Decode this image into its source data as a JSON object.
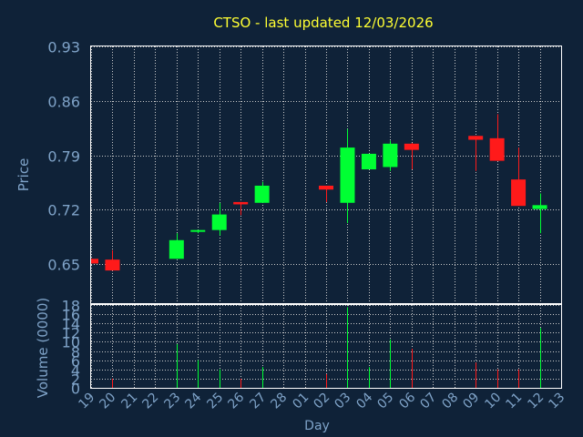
{
  "chart_data": {
    "type": "candlestick",
    "title": "CTSO - last updated 12/03/2026",
    "price_label": "Price",
    "volume_label": "Volume (0000)",
    "xlabel": "Day",
    "price_ylim": [
      0.6,
      0.93
    ],
    "price_ticks": [
      "0.65",
      "0.72",
      "0.79",
      "0.86",
      "0.93"
    ],
    "volume_ylim": [
      0,
      18
    ],
    "volume_ticks": [
      "0",
      "2",
      "4",
      "6",
      "8",
      "10",
      "12",
      "14",
      "16",
      "18"
    ],
    "days": [
      "19",
      "20",
      "21",
      "22",
      "23",
      "24",
      "25",
      "26",
      "27",
      "28",
      "01",
      "02",
      "03",
      "04",
      "05",
      "06",
      "07",
      "08",
      "09",
      "10",
      "11",
      "12",
      "13"
    ],
    "grid": true,
    "colors": {
      "up": "#00ff33",
      "down": "#ff1a1a",
      "background": "#0f2238",
      "plot_border": "#ffffff",
      "grid": "#cccccc",
      "title": "#ffff33",
      "axis_text": "#7fa3c8"
    },
    "candles": [
      {
        "day": "19",
        "open": 0.657,
        "close": 0.651,
        "high": 0.657,
        "low": 0.651
      },
      {
        "day": "20",
        "open": 0.656,
        "close": 0.642,
        "high": 0.668,
        "low": 0.642
      },
      {
        "day": "23",
        "open": 0.657,
        "close": 0.681,
        "high": 0.69,
        "low": 0.657
      },
      {
        "day": "24",
        "open": 0.692,
        "close": 0.694,
        "high": 0.694,
        "low": 0.69
      },
      {
        "day": "25",
        "open": 0.694,
        "close": 0.714,
        "high": 0.729,
        "low": 0.687
      },
      {
        "day": "26",
        "open": 0.73,
        "close": 0.727,
        "high": 0.73,
        "low": 0.713
      },
      {
        "day": "27",
        "open": 0.729,
        "close": 0.751,
        "high": 0.756,
        "low": 0.729
      },
      {
        "day": "02",
        "open": 0.751,
        "close": 0.746,
        "high": 0.751,
        "low": 0.73
      },
      {
        "day": "03",
        "open": 0.729,
        "close": 0.8,
        "high": 0.824,
        "low": 0.703
      },
      {
        "day": "04",
        "open": 0.772,
        "close": 0.792,
        "high": 0.792,
        "low": 0.772
      },
      {
        "day": "05",
        "open": 0.775,
        "close": 0.805,
        "high": 0.809,
        "low": 0.77
      },
      {
        "day": "06",
        "open": 0.805,
        "close": 0.797,
        "high": 0.806,
        "low": 0.772
      },
      {
        "day": "09",
        "open": 0.815,
        "close": 0.81,
        "high": 0.815,
        "low": 0.77
      },
      {
        "day": "10",
        "open": 0.812,
        "close": 0.783,
        "high": 0.843,
        "low": 0.783
      },
      {
        "day": "11",
        "open": 0.759,
        "close": 0.725,
        "high": 0.8,
        "low": 0.725
      },
      {
        "day": "12",
        "open": 0.721,
        "close": 0.726,
        "high": 0.741,
        "low": 0.69
      }
    ],
    "volume": [
      {
        "day": "19",
        "value": 0,
        "dir": "down"
      },
      {
        "day": "20",
        "value": 2,
        "dir": "down"
      },
      {
        "day": "23",
        "value": 9.5,
        "dir": "up"
      },
      {
        "day": "24",
        "value": 6,
        "dir": "up"
      },
      {
        "day": "25",
        "value": 4,
        "dir": "up"
      },
      {
        "day": "26",
        "value": 2,
        "dir": "down"
      },
      {
        "day": "27",
        "value": 4.5,
        "dir": "up"
      },
      {
        "day": "02",
        "value": 3,
        "dir": "down"
      },
      {
        "day": "03",
        "value": 17.5,
        "dir": "up"
      },
      {
        "day": "04",
        "value": 4.5,
        "dir": "up"
      },
      {
        "day": "05",
        "value": 10.5,
        "dir": "up"
      },
      {
        "day": "06",
        "value": 8.5,
        "dir": "down"
      },
      {
        "day": "09",
        "value": 5.5,
        "dir": "down"
      },
      {
        "day": "10",
        "value": 4,
        "dir": "down"
      },
      {
        "day": "11",
        "value": 4,
        "dir": "down"
      },
      {
        "day": "12",
        "value": 13,
        "dir": "up"
      }
    ]
  }
}
